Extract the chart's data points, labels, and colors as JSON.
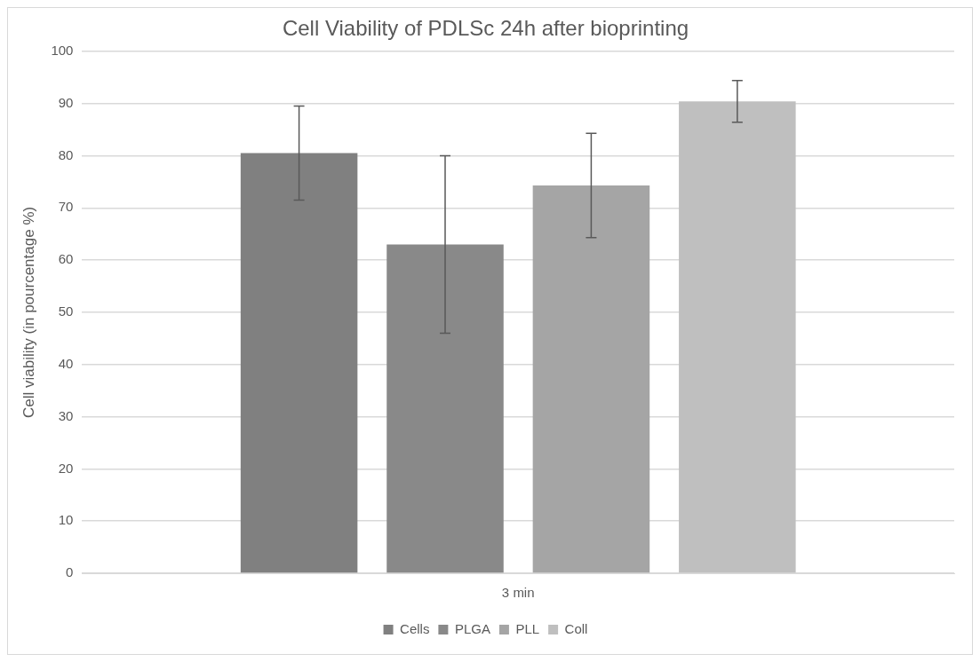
{
  "chart_data": {
    "type": "bar",
    "title": "Cell Viability of PDLSc 24h after bioprinting",
    "ylabel": "Cell viability (in pourcentage %)",
    "categories": [
      "3 min"
    ],
    "series": [
      {
        "name": "Cells",
        "color": "#808080",
        "values": [
          80.5
        ],
        "errors": [
          9
        ]
      },
      {
        "name": "PLGA",
        "color": "#898989",
        "values": [
          63
        ],
        "errors": [
          17
        ]
      },
      {
        "name": "PLL",
        "color": "#a5a5a5",
        "values": [
          74.3
        ],
        "errors": [
          10
        ]
      },
      {
        "name": "Coll",
        "color": "#bfbfbf",
        "values": [
          90.4
        ],
        "errors": [
          4
        ]
      }
    ],
    "ylim": [
      0,
      100
    ],
    "yticks": [
      0,
      10,
      20,
      30,
      40,
      50,
      60,
      70,
      80,
      90,
      100
    ],
    "grid": "y",
    "legend": "bottom"
  }
}
